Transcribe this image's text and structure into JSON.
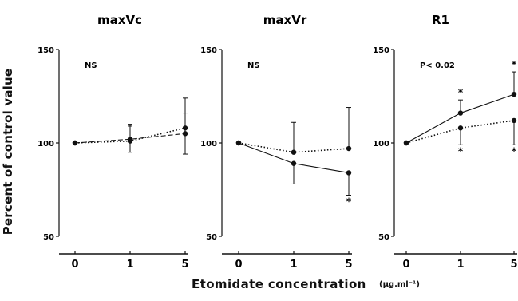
{
  "figure": {
    "ylabel": "Percent of control value",
    "xlabel": "Etomidate concentration",
    "xunit": "(µg.ml⁻¹)"
  },
  "chart_data": [
    {
      "type": "line",
      "title": "maxVc",
      "annotation": "NS",
      "x": [
        0,
        1,
        5
      ],
      "xticks": [
        "0",
        "1",
        "5"
      ],
      "ylim": [
        50,
        150
      ],
      "yticks": [
        50,
        100,
        150
      ],
      "series": [
        {
          "style": "dashed",
          "values": [
            100,
            102,
            105
          ],
          "error": [
            0,
            7,
            11
          ],
          "error_dir": [
            "none",
            "both",
            "both"
          ],
          "stars": []
        },
        {
          "style": "dotted",
          "values": [
            100,
            101,
            108
          ],
          "error": [
            0,
            9,
            16
          ],
          "error_dir": [
            "none",
            "up",
            "up"
          ],
          "stars": []
        }
      ]
    },
    {
      "type": "line",
      "title": "maxVr",
      "annotation": "NS",
      "x": [
        0,
        1,
        5
      ],
      "xticks": [
        "0",
        "1",
        "5"
      ],
      "ylim": [
        50,
        150
      ],
      "yticks": [
        50,
        100,
        150
      ],
      "series": [
        {
          "style": "solid",
          "values": [
            100,
            89,
            84
          ],
          "error": [
            0,
            11,
            12
          ],
          "error_dir": [
            "none",
            "down",
            "down"
          ],
          "stars": [
            "",
            "",
            "below"
          ]
        },
        {
          "style": "dotted",
          "values": [
            100,
            95,
            97
          ],
          "error": [
            0,
            16,
            22
          ],
          "error_dir": [
            "none",
            "up",
            "up"
          ],
          "stars": []
        }
      ]
    },
    {
      "type": "line",
      "title": "R1",
      "annotation": "P< 0.02",
      "x": [
        0,
        1,
        5
      ],
      "xticks": [
        "0",
        "1",
        "5"
      ],
      "ylim": [
        50,
        150
      ],
      "yticks": [
        50,
        100,
        150
      ],
      "series": [
        {
          "style": "solid",
          "values": [
            100,
            116,
            126
          ],
          "error": [
            0,
            7,
            12
          ],
          "error_dir": [
            "none",
            "up",
            "up"
          ],
          "stars": [
            "",
            "above",
            "above"
          ]
        },
        {
          "style": "dotted",
          "values": [
            100,
            108,
            112
          ],
          "error": [
            0,
            9,
            13
          ],
          "error_dir": [
            "none",
            "down",
            "down"
          ],
          "stars": [
            "",
            "below",
            "below"
          ]
        }
      ]
    }
  ]
}
